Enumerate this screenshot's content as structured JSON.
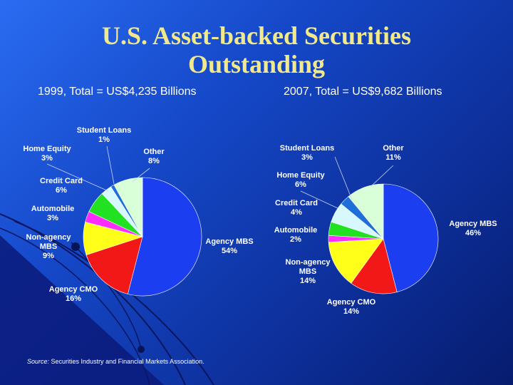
{
  "title_line1": "U.S. Asset-backed Securities",
  "title_line2": "Outstanding",
  "source_label": "Source:",
  "source_text": " Securities Industry and Financial Markets Association.",
  "colors": {
    "agency_mbs": "#1a3ef0",
    "agency_cmo": "#f21818",
    "non_agency_mbs": "#ffff1a",
    "automobile": "#ff2cff",
    "credit_card": "#22e022",
    "home_equity": "#d8f8ff",
    "student_loans": "#1f6fd8",
    "other": "#d8ffd8"
  },
  "chart_data": [
    {
      "type": "pie",
      "title": "1999, Total = US$4,235 Billions",
      "slices": [
        {
          "name": "Agency MBS",
          "value": 54,
          "pct": "54%",
          "color": "#1a3ef0"
        },
        {
          "name": "Agency CMO",
          "value": 16,
          "pct": "16%",
          "color": "#f21818"
        },
        {
          "name": "Non-agency MBS",
          "value": 9,
          "pct": "9%",
          "color": "#ffff1a"
        },
        {
          "name": "Automobile",
          "value": 3,
          "pct": "3%",
          "color": "#ff2cff"
        },
        {
          "name": "Credit Card",
          "value": 6,
          "pct": "6%",
          "color": "#22e022"
        },
        {
          "name": "Home Equity",
          "value": 3,
          "pct": "3%",
          "color": "#d8f8ff"
        },
        {
          "name": "Student Loans",
          "value": 1,
          "pct": "1%",
          "color": "#1f6fd8"
        },
        {
          "name": "Other",
          "value": 8,
          "pct": "8%",
          "color": "#d8ffd8"
        }
      ]
    },
    {
      "type": "pie",
      "title": "2007, Total = US$9,682 Billions",
      "slices": [
        {
          "name": "Agency MBS",
          "value": 46,
          "pct": "46%",
          "color": "#1a3ef0"
        },
        {
          "name": "Agency CMO",
          "value": 14,
          "pct": "14%",
          "color": "#f21818"
        },
        {
          "name": "Non-agency MBS",
          "value": 14,
          "pct": "14%",
          "color": "#ffff1a"
        },
        {
          "name": "Automobile",
          "value": 2,
          "pct": "2%",
          "color": "#ff2cff"
        },
        {
          "name": "Credit Card",
          "value": 4,
          "pct": "4%",
          "color": "#22e022"
        },
        {
          "name": "Home Equity",
          "value": 6,
          "pct": "6%",
          "color": "#d8f8ff"
        },
        {
          "name": "Student Loans",
          "value": 3,
          "pct": "3%",
          "color": "#1f6fd8"
        },
        {
          "name": "Other",
          "value": 11,
          "pct": "11%",
          "color": "#d8ffd8"
        }
      ]
    }
  ]
}
